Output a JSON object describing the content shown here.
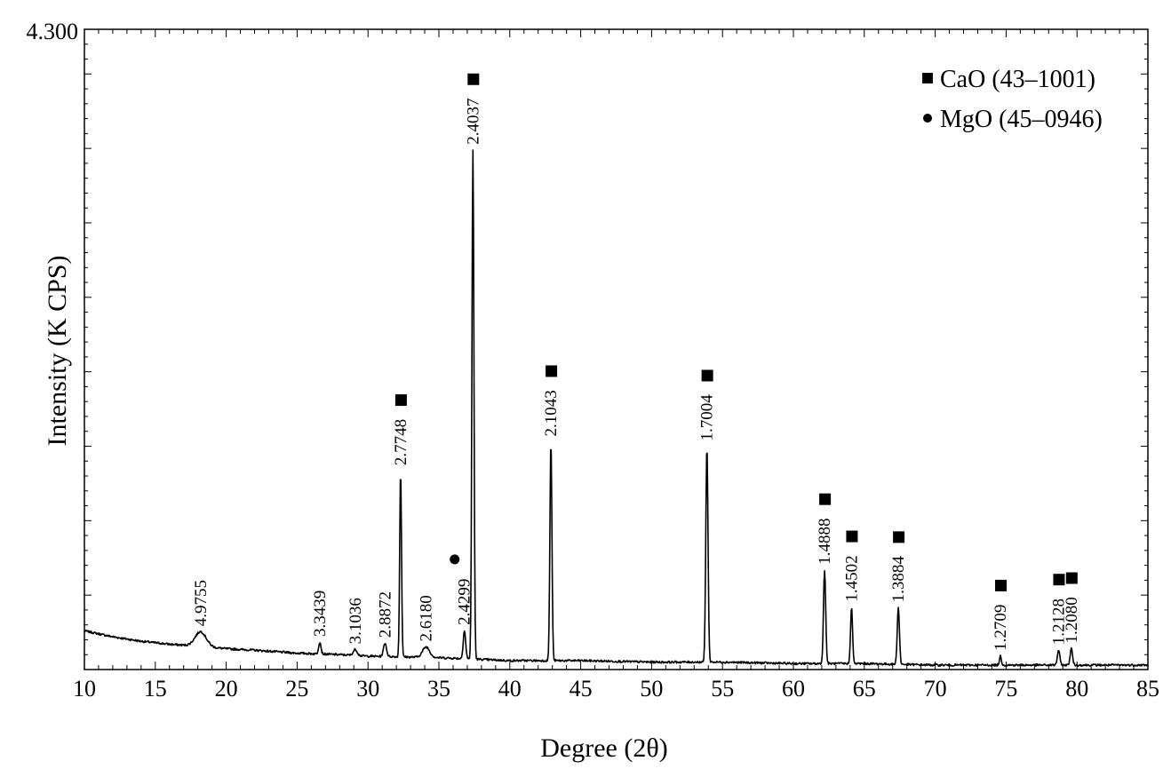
{
  "chart_data": {
    "type": "line",
    "title": "",
    "xlabel": "Degree (2θ)",
    "ylabel": "Intensity (K CPS)",
    "xlim": [
      10,
      85
    ],
    "ylim": [
      0,
      4.3
    ],
    "y_tick_labels": [
      "4.300"
    ],
    "x_ticks": [
      10,
      15,
      20,
      25,
      30,
      35,
      40,
      45,
      50,
      55,
      60,
      65,
      70,
      75,
      80,
      85
    ],
    "grid": false,
    "legend_position": "top-right",
    "legend": [
      {
        "marker": "square",
        "label": "CaO (43–1001)"
      },
      {
        "marker": "circle",
        "label": "MgO (45–0946)"
      }
    ],
    "baseline": [
      [
        10,
        0.26
      ],
      [
        12,
        0.22
      ],
      [
        14,
        0.19
      ],
      [
        16,
        0.17
      ],
      [
        17.5,
        0.16
      ],
      [
        20,
        0.14
      ],
      [
        22,
        0.13
      ],
      [
        25,
        0.11
      ],
      [
        28,
        0.1
      ],
      [
        30,
        0.09
      ],
      [
        35,
        0.08
      ],
      [
        40,
        0.06
      ],
      [
        45,
        0.06
      ],
      [
        50,
        0.05
      ],
      [
        55,
        0.05
      ],
      [
        60,
        0.04
      ],
      [
        65,
        0.04
      ],
      [
        70,
        0.03
      ],
      [
        75,
        0.03
      ],
      [
        80,
        0.03
      ],
      [
        85,
        0.03
      ]
    ],
    "peaks": [
      {
        "x": 18.2,
        "height": 0.1,
        "width": 0.55,
        "label": "4.9755",
        "phase": ""
      },
      {
        "x": 26.6,
        "height": 0.08,
        "width": 0.12,
        "label": "3.3439",
        "phase": ""
      },
      {
        "x": 29.1,
        "height": 0.04,
        "width": 0.2,
        "label": "3.1036",
        "phase": ""
      },
      {
        "x": 31.2,
        "height": 0.09,
        "width": 0.15,
        "label": "2.8872",
        "phase": ""
      },
      {
        "x": 32.3,
        "height": 1.25,
        "width": 0.09,
        "label": "2.7748",
        "phase": "CaO"
      },
      {
        "x": 34.1,
        "height": 0.07,
        "width": 0.35,
        "label": "2.6180",
        "phase": ""
      },
      {
        "x": 36.8,
        "height": 0.19,
        "width": 0.12,
        "label": "2.4299",
        "phase": "MgO"
      },
      {
        "x": 37.4,
        "height": 3.42,
        "width": 0.1,
        "label": "2.4037",
        "phase": "CaO"
      },
      {
        "x": 42.9,
        "height": 1.47,
        "width": 0.1,
        "label": "2.1043",
        "phase": "CaO"
      },
      {
        "x": 53.9,
        "height": 1.45,
        "width": 0.11,
        "label": "1.7004",
        "phase": "CaO"
      },
      {
        "x": 62.2,
        "height": 0.63,
        "width": 0.11,
        "label": "1.4888",
        "phase": "CaO"
      },
      {
        "x": 64.1,
        "height": 0.38,
        "width": 0.1,
        "label": "1.4502",
        "phase": "CaO"
      },
      {
        "x": 67.4,
        "height": 0.38,
        "width": 0.11,
        "label": "1.3884",
        "phase": "CaO"
      },
      {
        "x": 74.6,
        "height": 0.06,
        "width": 0.1,
        "label": "1.2709",
        "phase": "CaO"
      },
      {
        "x": 78.7,
        "height": 0.1,
        "width": 0.12,
        "label": "1.2128",
        "phase": "CaO"
      },
      {
        "x": 79.6,
        "height": 0.11,
        "width": 0.12,
        "label": "1.2080",
        "phase": "CaO"
      }
    ]
  }
}
